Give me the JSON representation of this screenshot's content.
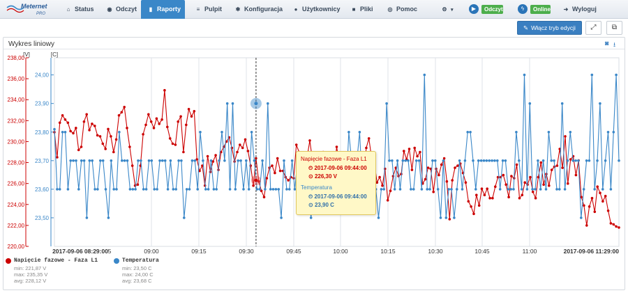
{
  "nav": {
    "brand": "Meternet",
    "brand_sub": "PRO",
    "items": [
      {
        "label": "Status",
        "icon": "home-icon"
      },
      {
        "label": "Odczyt",
        "icon": "eye-icon"
      },
      {
        "label": "Raporty",
        "icon": "bar-chart-icon"
      },
      {
        "label": "Pulpit",
        "icon": "list-icon"
      },
      {
        "label": "Konfiguracja",
        "icon": "gear-icon"
      },
      {
        "label": "Użytkownicy",
        "icon": "user-icon"
      },
      {
        "label": "Pliki",
        "icon": "folder-icon"
      },
      {
        "label": "Pomoc",
        "icon": "lifebuoy-icon"
      },
      {
        "label": "Wyloguj",
        "icon": "sign-out-icon"
      }
    ],
    "badge_read": "Odczyt",
    "badge_online": "Online"
  },
  "toolbar": {
    "edit_mode_label": "Włącz tryb edycji"
  },
  "panel": {
    "title": "Wykres liniowy"
  },
  "chart_data": {
    "type": "line",
    "title": "",
    "x_axis": {
      "start": "2017-09-06 08:29:00",
      "end": "2017-09-06 11:29:00",
      "tick_labels": [
        "2017-09-06 08:29:00",
        "5",
        "09:00",
        "09:15",
        "09:30",
        "09:45",
        "10:00",
        "10:15",
        "10:30",
        "10:45",
        "11:00",
        "2017-09-06 11:29:00"
      ]
    },
    "y_axes": [
      {
        "unit_label": "[V]",
        "side": "left",
        "ylim": [
          220,
          238
        ],
        "ticks": [
          "238,00",
          "236,00",
          "234,00",
          "232,00",
          "230,00",
          "228,00",
          "226,00",
          "224,00",
          "222,00",
          "220,00"
        ],
        "color": "#cc0000"
      },
      {
        "unit_label": "[C]",
        "side": "left-inner",
        "ylim": [
          23.4,
          24.06
        ],
        "ticks": [
          "24,00",
          "23,90",
          "23,80",
          "23,70",
          "23,60",
          "23,50"
        ],
        "color": "#3a87c8"
      }
    ],
    "grid": true,
    "cursor_time": "09:44",
    "series": [
      {
        "name": "Napięcie fazowe - Faza L1",
        "color": "#cc0000",
        "axis": 0,
        "values": [
          230.9,
          228.5,
          231.8,
          232.5,
          232.1,
          231.8,
          231.0,
          230.8,
          231.3,
          229.2,
          229.5,
          231.9,
          232.6,
          231.1,
          231.7,
          231.5,
          230.6,
          230.5,
          229.8,
          229.3,
          231.2,
          230.5,
          229.0,
          230.2,
          232.5,
          232.8,
          233.3,
          231.3,
          229.5,
          227.7,
          225.8,
          225.9,
          227.7,
          230.7,
          231.6,
          232.6,
          231.9,
          231.3,
          232.2,
          231.7,
          232.1,
          234.9,
          231.4,
          230.3,
          229.8,
          229.7,
          231.9,
          232.4,
          229.0,
          231.6,
          233.1,
          232.4,
          232.9,
          228.3,
          227.2,
          227.7,
          225.8,
          228.6,
          227.1,
          228.1,
          228.7,
          227.3,
          229.0,
          229.5,
          230.0,
          230.4,
          229.4,
          228.1,
          229.0,
          229.7,
          229.4,
          230.2,
          229.1,
          227.7,
          225.8,
          228.4,
          226.2,
          225.3,
          224.7,
          226.5,
          227.5,
          227.7,
          227.0,
          228.4,
          227.2,
          227.2,
          226.6,
          226.3,
          226.6,
          226.5,
          229.7,
          229.0,
          228.0,
          227.6,
          228.5,
          230.1,
          228.2,
          226.5,
          227.6,
          228.0,
          229.0,
          227.8,
          227.2,
          227.5,
          227.1,
          229.5,
          227.8,
          226.7,
          228.3,
          228.6,
          226.9,
          226.3,
          228.8,
          227.1,
          225.5,
          226.8,
          229.4,
          230.3,
          228.4,
          228.0,
          226.1,
          226.6,
          225.8,
          227.4,
          224.4,
          225.3,
          226.7,
          227.5,
          226.7,
          226.9,
          229.1,
          228.3,
          229.3,
          227.3,
          229.4,
          228.6,
          229.0,
          226.0,
          226.4,
          227.5,
          227.4,
          225.2,
          227.4,
          226.8,
          227.8,
          228.4,
          226.2,
          222.6,
          226.3,
          227.5,
          227.7,
          227.9,
          227.0,
          226.1,
          224.3,
          223.8,
          223.1,
          224.9,
          223.9,
          225.5,
          224.9,
          225.5,
          224.6,
          224.6,
          225.7,
          226.6,
          226.6,
          226.8,
          225.9,
          224.7,
          226.7,
          226.5,
          227.8,
          224.6,
          224.9,
          226.1,
          225.9,
          226.6,
          225.2,
          224.6,
          226.6,
          228.0,
          225.9,
          226.9,
          225.8,
          227.3,
          227.6,
          227.7,
          229.3,
          227.5,
          230.5,
          226.0,
          228.3,
          228.6,
          226.8,
          228.2,
          224.7,
          223.9,
          222.0,
          223.8,
          224.6,
          223.3,
          225.7,
          225.1,
          224.3,
          224.8,
          223.4,
          222.2,
          222.1,
          221.9,
          221.8
        ]
      },
      {
        "name": "Temperatura",
        "color": "#3a87c8",
        "axis": 1,
        "values": [
          23.81,
          23.6,
          23.6,
          23.8,
          23.8,
          23.6,
          23.7,
          23.7,
          23.7,
          23.6,
          23.7,
          23.7,
          23.5,
          23.7,
          23.7,
          23.6,
          23.6,
          23.7,
          23.7,
          23.6,
          23.5,
          23.7,
          23.6,
          23.6,
          23.8,
          23.7,
          23.7,
          23.7,
          23.6,
          23.6,
          23.6,
          23.7,
          23.7,
          23.6,
          23.6,
          23.7,
          23.7,
          23.6,
          23.6,
          23.7,
          23.7,
          23.7,
          23.6,
          23.7,
          23.6,
          23.6,
          23.7,
          23.7,
          23.5,
          23.6,
          23.6,
          23.7,
          23.7,
          23.6,
          23.8,
          23.7,
          23.6,
          23.6,
          23.7,
          23.6,
          23.6,
          23.7,
          23.8,
          23.7,
          23.9,
          23.6,
          23.9,
          23.6,
          23.7,
          23.7,
          23.6,
          23.7,
          23.6,
          23.8,
          23.7,
          23.6,
          23.6,
          23.7,
          23.6,
          23.9,
          23.6,
          23.6,
          23.6,
          23.6,
          23.5,
          23.7,
          23.6,
          23.6,
          23.7,
          23.6,
          23.7,
          23.7,
          23.7,
          23.6,
          23.6,
          23.5,
          23.6,
          23.6,
          23.7,
          23.7,
          23.6,
          23.6,
          23.7,
          23.7,
          23.6,
          23.6,
          23.7,
          23.6,
          23.6,
          23.8,
          23.7,
          23.6,
          23.7,
          23.8,
          23.6,
          23.6,
          23.7,
          23.7,
          23.6,
          23.6,
          23.5,
          23.6,
          23.6,
          23.9,
          23.7,
          23.7,
          23.6,
          23.7,
          23.6,
          23.7,
          23.7,
          23.7,
          23.6,
          23.6,
          23.7,
          23.7,
          23.6,
          24.0,
          23.6,
          23.6,
          23.7,
          23.7,
          23.6,
          23.5,
          23.7,
          23.5,
          23.6,
          23.6,
          23.5,
          23.6,
          23.7,
          23.6,
          23.7,
          23.8,
          23.8,
          23.7,
          23.6,
          23.7,
          23.7,
          23.7,
          23.7,
          23.7,
          23.7,
          23.7,
          23.7,
          23.6,
          23.7,
          23.7,
          23.6,
          23.6,
          23.6,
          23.8,
          23.7,
          23.6,
          24.0,
          23.6,
          23.9,
          23.6,
          23.6,
          23.7,
          23.6,
          23.7,
          23.6,
          23.8,
          23.7,
          23.7,
          23.6,
          23.6,
          23.9,
          23.6,
          23.7,
          23.8,
          23.7,
          23.7,
          23.7,
          23.5,
          23.6,
          23.7,
          23.7,
          24.0,
          23.6,
          23.7,
          23.9,
          23.6,
          23.7,
          23.8,
          23.6,
          23.8,
          24.0,
          23.7
        ]
      }
    ]
  },
  "tooltip": {
    "series1_name": "Napięcie fazowe - Faza L1",
    "series1_time": "2017-09-06 09:44:00",
    "series1_value": "226,30 V",
    "series2_name": "Temperatura",
    "series2_time": "2017-09-06 09:44:00",
    "series2_value": "23,90 C"
  },
  "legend": [
    {
      "name": "Napięcie fazowe - Faza L1",
      "min": "min: 221,87 V",
      "max": "max: 235,35 V",
      "avg": "avg: 228,12 V",
      "color": "#cc0000"
    },
    {
      "name": "Temperatura",
      "min": "min: 23,50 C",
      "max": "max: 24,00 C",
      "avg": "avg: 23,68 C",
      "color": "#3a87c8"
    }
  ]
}
